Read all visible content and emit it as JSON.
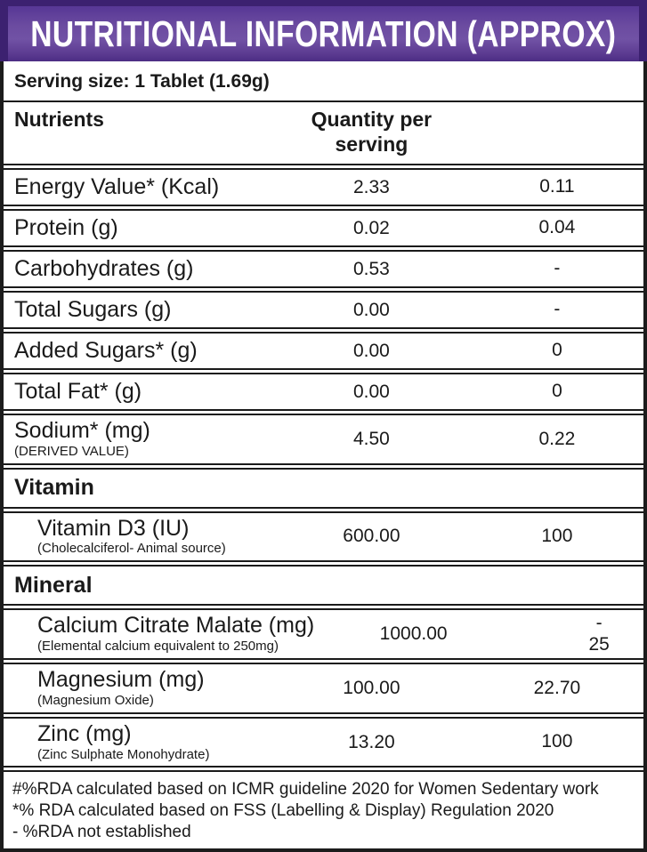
{
  "colors": {
    "header_purple": "#5d3c92",
    "header_border_purple": "#3c2170",
    "table_border": "#1a1a1a",
    "title_text": "#ffffff"
  },
  "header": {
    "title": "NUTRITIONAL INFORMATION (APPROX)"
  },
  "serving_line": "Serving size: 1 Tablet (1.69g)",
  "table": {
    "col1_header": "Nutrients",
    "col2_header": "Quantity per serving",
    "col3_header": "",
    "rows": [
      {
        "label": "Energy Value* (Kcal)",
        "qty": "2.33",
        "rda": "0.11"
      },
      {
        "label": "Protein (g)",
        "qty": "0.02",
        "rda": "0.04"
      },
      {
        "label": "Carbohydrates (g)",
        "qty": "0.53",
        "rda": "-"
      },
      {
        "label": "Total Sugars (g)",
        "qty": "0.00",
        "rda": "-"
      },
      {
        "label": "Added Sugars* (g)",
        "qty": "0.00",
        "rda": "0"
      },
      {
        "label": "Total Fat* (g)",
        "qty": "0.00",
        "rda": "0"
      },
      {
        "label": "Sodium* (mg)",
        "sublabel": "(DERIVED VALUE)",
        "qty": "4.50",
        "rda": "0.22"
      },
      {
        "section": "Vitamin"
      },
      {
        "label": "Vitamin D3 (IU)",
        "sublabel": "(Cholecalciferol- Animal source)",
        "qty": "600.00",
        "rda": "100",
        "indent": true
      },
      {
        "section": "Mineral"
      },
      {
        "label": "Calcium Citrate Malate (mg)",
        "sublabel": "(Elemental calcium equivalent to 250mg)",
        "qty": "1000.00",
        "rda": "-\n25",
        "indent": true
      },
      {
        "label": "Magnesium (mg)",
        "sublabel": "(Magnesium Oxide)",
        "qty": "100.00",
        "rda": "22.70",
        "indent": true
      },
      {
        "label": "Zinc (mg)",
        "sublabel": "(Zinc Sulphate Monohydrate)",
        "qty": "13.20",
        "rda": "100",
        "indent": true
      }
    ]
  },
  "footnotes": [
    "#%RDA calculated based on ICMR guideline 2020 for Women Sedentary work",
    "*% RDA calculated based on FSS (Labelling & Display) Regulation 2020",
    "- %RDA not established"
  ]
}
